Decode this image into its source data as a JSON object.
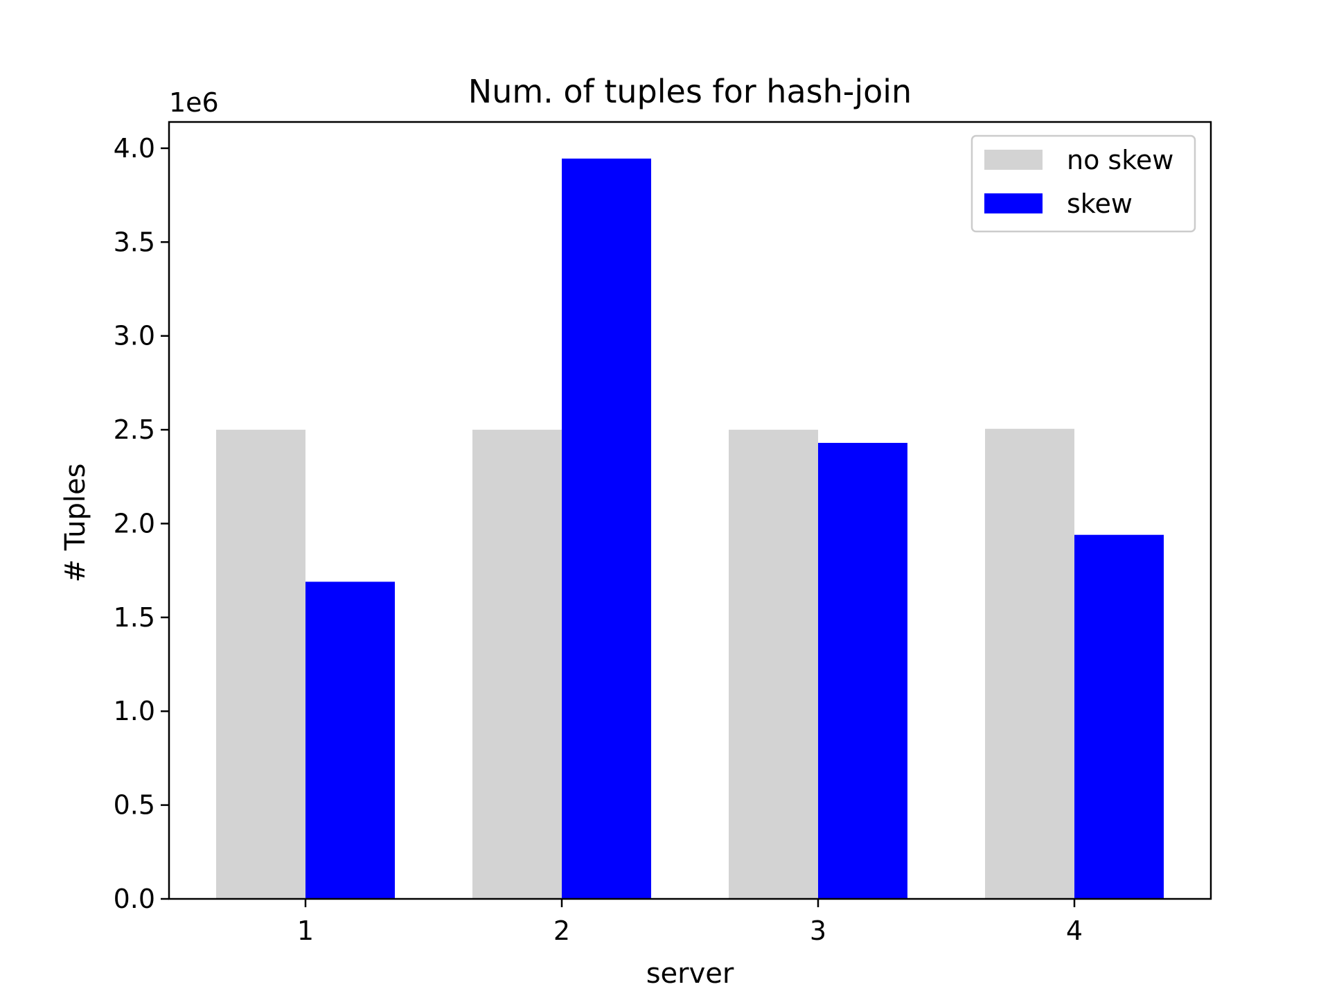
{
  "chart_data": {
    "type": "bar",
    "title": "Num. of tuples for hash-join",
    "xlabel": "server",
    "ylabel": "# Tuples",
    "offset_label": "1e6",
    "categories": [
      "1",
      "2",
      "3",
      "4"
    ],
    "series": [
      {
        "name": "no skew",
        "color": "#d3d3d3",
        "values": [
          2500000,
          2500000,
          2500000,
          2505000
        ]
      },
      {
        "name": "skew",
        "color": "#0000ff",
        "values": [
          1690000,
          3945000,
          2430000,
          1940000
        ]
      }
    ],
    "ylim": [
      0,
      4140000
    ],
    "yticks": [
      0,
      500000,
      1000000,
      1500000,
      2000000,
      2500000,
      3000000,
      3500000,
      4000000
    ],
    "ytick_labels": [
      "0.0",
      "0.5",
      "1.0",
      "1.5",
      "2.0",
      "2.5",
      "3.0",
      "3.5",
      "4.0"
    ],
    "grid": false,
    "legend_position": "top-right"
  }
}
